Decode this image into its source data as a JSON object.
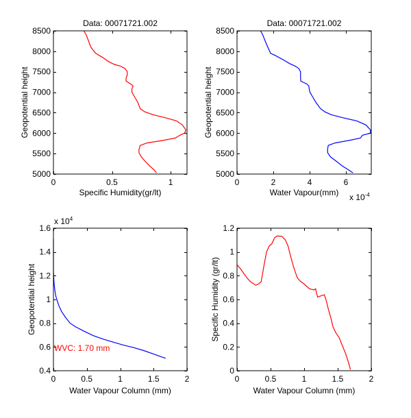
{
  "chart_data": [
    {
      "type": "line",
      "title": "Data: 00071721.002",
      "xlabel": "Specific Humidity(gr/lt)",
      "ylabel": "Geopotential height",
      "xlim": [
        0,
        1.14
      ],
      "ylim": [
        5000,
        8500
      ],
      "xticks": [
        0,
        0.5,
        1
      ],
      "xtick_labels": [
        "0",
        "0.5",
        "1"
      ],
      "yticks": [
        5000,
        5500,
        6000,
        6500,
        7000,
        7500,
        8000,
        8500
      ],
      "ytick_labels": [
        "5000",
        "5500",
        "6000",
        "6500",
        "7000",
        "7500",
        "8000",
        "8500"
      ],
      "color": "#ff0000",
      "series": [
        {
          "name": "specific-humidity",
          "x": [
            0.26,
            0.28,
            0.3,
            0.32,
            0.36,
            0.42,
            0.47,
            0.52,
            0.57,
            0.61,
            0.63,
            0.63,
            0.62,
            0.62,
            0.66,
            0.68,
            0.67,
            0.67,
            0.69,
            0.72,
            0.74,
            0.78,
            0.85,
            0.95,
            1.05,
            1.1,
            1.13,
            1.12,
            1.08,
            1.04,
            0.93,
            0.8,
            0.74,
            0.73,
            0.73,
            0.75,
            0.78,
            0.82,
            0.86,
            0.88
          ],
          "y": [
            8500,
            8400,
            8250,
            8100,
            7950,
            7850,
            7750,
            7680,
            7640,
            7580,
            7500,
            7420,
            7350,
            7270,
            7200,
            7150,
            7080,
            7000,
            6900,
            6750,
            6600,
            6520,
            6450,
            6380,
            6300,
            6200,
            6080,
            6000,
            5950,
            5880,
            5820,
            5760,
            5700,
            5600,
            5520,
            5420,
            5320,
            5200,
            5100,
            5030
          ]
        }
      ]
    },
    {
      "type": "line",
      "title": "Data: 00071721.002",
      "xlabel": "Water Vapour(mm)",
      "ylabel": "Geopotential height",
      "x_multiplier": "x 10",
      "x_multiplier_exp": "-4",
      "xlim": [
        0,
        7.4
      ],
      "ylim": [
        5000,
        8500
      ],
      "xticks": [
        0,
        2,
        4,
        6
      ],
      "xtick_labels": [
        "0",
        "2",
        "4",
        "6"
      ],
      "yticks": [
        5000,
        5500,
        6000,
        6500,
        7000,
        7500,
        8000,
        8500
      ],
      "ytick_labels": [
        "5000",
        "5500",
        "6000",
        "6500",
        "7000",
        "7500",
        "8000",
        "8500"
      ],
      "color": "#0000ff",
      "series": [
        {
          "name": "water-vapour",
          "x": [
            1.3,
            1.42,
            1.55,
            1.7,
            1.85,
            2.1,
            2.6,
            2.9,
            3.2,
            3.4,
            3.5,
            3.5,
            3.5,
            3.52,
            3.85,
            3.96,
            3.98,
            4.02,
            4.15,
            4.35,
            4.6,
            4.84,
            5.2,
            5.8,
            6.6,
            7.1,
            7.35,
            7.36,
            6.92,
            6.8,
            6.16,
            5.41,
            5.03,
            4.99,
            5.0,
            5.15,
            5.45,
            5.8,
            6.15,
            6.39
          ],
          "y": [
            8500,
            8400,
            8250,
            8100,
            7950,
            7900,
            7780,
            7700,
            7640,
            7580,
            7500,
            7420,
            7350,
            7270,
            7200,
            7150,
            7080,
            7000,
            6900,
            6750,
            6600,
            6520,
            6450,
            6380,
            6300,
            6200,
            6080,
            6000,
            5950,
            5880,
            5820,
            5760,
            5700,
            5600,
            5520,
            5420,
            5320,
            5200,
            5100,
            5030
          ]
        }
      ]
    },
    {
      "type": "line",
      "title": "",
      "xlabel": "Water Vapour Column (mm)",
      "ylabel": "Geopotential height",
      "y_multiplier": "x 10",
      "y_multiplier_exp": "4",
      "xlim": [
        0,
        2
      ],
      "ylim": [
        0.4,
        1.6
      ],
      "xticks": [
        0,
        0.5,
        1,
        1.5,
        2
      ],
      "xtick_labels": [
        "0",
        "0.5",
        "1",
        "1.5",
        "2"
      ],
      "yticks": [
        0.4,
        0.6,
        0.8,
        1.0,
        1.2,
        1.4,
        1.6
      ],
      "ytick_labels": [
        "0.4",
        "0.6",
        "0.8",
        "1",
        "1.2",
        "1.4",
        "1.6"
      ],
      "color": "#0000ff",
      "annotation": {
        "text": "WVC: 1.70 mm",
        "color": "#ff0000",
        "x": 0,
        "y": 0.6
      },
      "series": [
        {
          "name": "water-vapour-column",
          "x": [
            0.0,
            0.0,
            0.005,
            0.01,
            0.02,
            0.035,
            0.05,
            0.08,
            0.12,
            0.18,
            0.25,
            0.33,
            0.45,
            0.6,
            0.75,
            0.9,
            1.05,
            1.2,
            1.35,
            1.5,
            1.6,
            1.68
          ],
          "y": [
            1.51,
            1.24,
            1.18,
            1.13,
            1.08,
            1.03,
            1.0,
            0.95,
            0.9,
            0.85,
            0.8,
            0.77,
            0.735,
            0.695,
            0.665,
            0.64,
            0.615,
            0.595,
            0.57,
            0.54,
            0.52,
            0.505
          ]
        }
      ]
    },
    {
      "type": "line",
      "title": "",
      "xlabel": "Water Vapour Column (mm)",
      "ylabel": "Specific Humidity (gr/lt)",
      "xlim": [
        0,
        2
      ],
      "ylim": [
        0,
        1.2
      ],
      "xticks": [
        0,
        0.5,
        1,
        1.5,
        2
      ],
      "xtick_labels": [
        "0",
        "0.5",
        "1",
        "1.5",
        "2"
      ],
      "yticks": [
        0,
        0.2,
        0.4,
        0.6,
        0.8,
        1.0,
        1.2
      ],
      "ytick_labels": [
        "0",
        "0.2",
        "0.4",
        "0.6",
        "0.8",
        "1",
        "1.2"
      ],
      "color": "#ff0000",
      "series": [
        {
          "name": "humidity-vs-column",
          "x": [
            0.0,
            0.05,
            0.1,
            0.15,
            0.2,
            0.28,
            0.32,
            0.36,
            0.4,
            0.44,
            0.48,
            0.52,
            0.56,
            0.6,
            0.67,
            0.72,
            0.76,
            0.8,
            0.85,
            0.9,
            0.95,
            1.0,
            1.08,
            1.15,
            1.17,
            1.2,
            1.25,
            1.3,
            1.33,
            1.36,
            1.4,
            1.43,
            1.47,
            1.52,
            1.57,
            1.62,
            1.66,
            1.69
          ],
          "y": [
            0.89,
            0.86,
            0.82,
            0.78,
            0.75,
            0.72,
            0.73,
            0.75,
            0.88,
            1.0,
            1.05,
            1.07,
            1.12,
            1.135,
            1.13,
            1.1,
            1.05,
            0.96,
            0.86,
            0.78,
            0.75,
            0.73,
            0.69,
            0.68,
            0.69,
            0.62,
            0.63,
            0.64,
            0.59,
            0.52,
            0.44,
            0.37,
            0.32,
            0.28,
            0.21,
            0.14,
            0.07,
            0.01
          ]
        }
      ]
    }
  ]
}
